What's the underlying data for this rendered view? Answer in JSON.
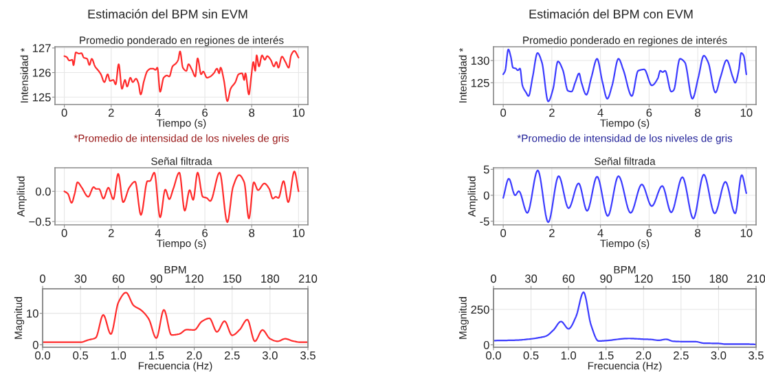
{
  "chart_data": [
    {
      "type": "line",
      "title": "Promedio ponderado en regiones de interés",
      "xlabel": "Tiempo (s)",
      "ylabel": "Intensidad *",
      "annotations": [
        "Estimación del BPM sin EVM",
        "*Promedio de intensidad de los niveles de gris"
      ],
      "xlim": [
        -0.4,
        10.4
      ],
      "xticks": [
        0,
        2,
        4,
        6,
        8,
        10
      ],
      "ylim": [
        124.7,
        127.05
      ],
      "yticks": [
        125,
        126,
        127
      ],
      "grid": true,
      "series": [
        {
          "color": "#ff2a2a",
          "x": [
            0,
            0.1,
            0.21,
            0.34,
            0.39,
            0.49,
            0.63,
            0.73,
            0.83,
            0.97,
            1.07,
            1.17,
            1.31,
            1.46,
            1.56,
            1.71,
            1.85,
            1.95,
            2.09,
            2.19,
            2.32,
            2.46,
            2.59,
            2.68,
            2.82,
            2.92,
            3.06,
            3.16,
            3.26,
            3.4,
            3.55,
            3.7,
            3.79,
            3.89,
            3.97,
            4.09,
            4.24,
            4.38,
            4.48,
            4.62,
            4.77,
            4.86,
            4.94,
            5.06,
            5.21,
            5.3,
            5.45,
            5.59,
            5.69,
            5.84,
            5.93,
            6.09,
            6.23,
            6.38,
            6.52,
            6.61,
            6.67,
            6.81,
            6.96,
            7.1,
            7.3,
            7.44,
            7.59,
            7.68,
            7.73,
            7.88,
            7.98,
            8.07,
            8.15,
            8.21,
            8.31,
            8.44,
            8.56,
            8.66,
            8.81,
            8.95,
            9.05,
            9.14,
            9.29,
            9.44,
            9.58,
            9.68,
            9.82,
            10
          ],
          "values": [
            126.67,
            126.63,
            126.49,
            126.52,
            126.3,
            126.82,
            126.77,
            126.79,
            126.61,
            126.56,
            126.31,
            126.56,
            126.25,
            126.07,
            125.93,
            125.61,
            125.93,
            125.66,
            125.7,
            125.52,
            126.34,
            125.34,
            125.7,
            125.43,
            125.79,
            125.61,
            125.75,
            125.57,
            125.11,
            125.66,
            126.07,
            126.16,
            126.16,
            126.11,
            126.2,
            125.22,
            125.79,
            125.88,
            125.84,
            126.25,
            126.38,
            126.52,
            126.86,
            126.2,
            126.07,
            126.34,
            126.11,
            125.84,
            126.58,
            125.93,
            126.04,
            125.79,
            125.84,
            125.97,
            126.16,
            125.97,
            126.2,
            125.7,
            124.84,
            125.34,
            125.61,
            125.93,
            125.97,
            125.7,
            125.97,
            125.11,
            125.84,
            126.43,
            126.07,
            126.7,
            126.25,
            126.7,
            126.52,
            126.67,
            126.52,
            126.25,
            126.43,
            126.2,
            126.65,
            126.43,
            126.2,
            126.7,
            126.88,
            126.61
          ]
        }
      ]
    },
    {
      "type": "line",
      "title": "Promedio ponderado en regiones de interés",
      "xlabel": "Tiempo (s)",
      "ylabel": "Intensidad *",
      "annotations": [
        "Estimación del BPM con EVM",
        "*Promedio de intensidad de los niveles de gris"
      ],
      "xlim": [
        -0.4,
        10.4
      ],
      "xticks": [
        0,
        2,
        4,
        6,
        8,
        10
      ],
      "ylim": [
        120.1,
        133.1
      ],
      "yticks": [
        125,
        130
      ],
      "grid": true,
      "series": [
        {
          "color": "#3a3aff",
          "x": [
            0,
            0.08,
            0.21,
            0.31,
            0.4,
            0.52,
            0.6,
            0.69,
            0.79,
            0.94,
            1.04,
            1.21,
            1.41,
            1.59,
            1.85,
            2.05,
            2.25,
            2.45,
            2.66,
            2.81,
            2.97,
            3.12,
            3.22,
            3.42,
            3.63,
            3.86,
            4.08,
            4.28,
            4.48,
            4.74,
            4.94,
            5.29,
            5.55,
            5.8,
            6.11,
            6.36,
            6.46,
            6.56,
            6.66,
            6.91,
            7.01,
            7.27,
            7.47,
            7.78,
            8.03,
            8.25,
            8.43,
            8.73,
            8.94,
            9.19,
            9.44,
            9.54,
            9.69,
            9.79,
            9.89,
            10
          ],
          "values": [
            126.9,
            127.7,
            132.5,
            130.9,
            128.4,
            128.2,
            127.8,
            128.2,
            124.4,
            122.8,
            122,
            126.3,
            131.7,
            129.6,
            120.8,
            123.6,
            129.8,
            127.9,
            123.2,
            123,
            125.2,
            127.1,
            125,
            122.3,
            126.3,
            130.4,
            125.2,
            121.4,
            124.4,
            130.4,
            127.9,
            122,
            127.7,
            128,
            124.4,
            126,
            127.7,
            127.4,
            127.7,
            123,
            123.3,
            130.4,
            129.6,
            121.4,
            126.3,
            131.1,
            129.6,
            122.8,
            126.3,
            130.1,
            126.3,
            125,
            127.9,
            131.7,
            131.1,
            126.9
          ]
        }
      ]
    },
    {
      "type": "line",
      "title": "Señal filtrada",
      "xlabel": "Tiempo (s)",
      "ylabel": "Amplitud",
      "xlim": [
        -0.4,
        10.4
      ],
      "xticks": [
        0,
        2,
        4,
        6,
        8,
        10
      ],
      "ylim": [
        -0.555,
        0.39
      ],
      "yticks": [
        {
          "value": 0,
          "label": "0.0"
        },
        {
          "value": -0.5,
          "label": "−0.5"
        }
      ],
      "grid": true,
      "series": [
        {
          "color": "#ff2a2a",
          "x": [
            0,
            0.15,
            0.31,
            0.44,
            0.56,
            0.73,
            1.02,
            1.25,
            1.36,
            1.48,
            1.67,
            1.88,
            2.09,
            2.3,
            2.51,
            2.77,
            3.02,
            3.27,
            3.55,
            3.65,
            3.84,
            4.09,
            4.31,
            4.48,
            4.65,
            4.91,
            5.14,
            5.35,
            5.5,
            5.69,
            5.91,
            6.08,
            6.23,
            6.63,
            6.96,
            7.2,
            7.46,
            7.68,
            7.88,
            8.09,
            8.27,
            8.54,
            8.75,
            8.9,
            9.03,
            9.14,
            9.36,
            9.56,
            9.82,
            10
          ],
          "values": [
            0,
            -0.04,
            -0.19,
            -0.04,
            0.15,
            0.07,
            -0.09,
            0.07,
            0.04,
            0.04,
            -0.12,
            0.06,
            -0.13,
            0.29,
            -0.18,
            0.06,
            0.16,
            -0.39,
            0.17,
            0.17,
            0.31,
            -0.43,
            0.03,
            -0.13,
            0.04,
            0.31,
            -0.32,
            0.02,
            -0.14,
            0.31,
            -0.09,
            -0.11,
            -0.16,
            0.31,
            -0.51,
            0.07,
            0.27,
            0.15,
            -0.45,
            0.15,
            0.02,
            0.13,
            0.04,
            -0.12,
            -0.09,
            -0.11,
            0.17,
            -0.18,
            0.33,
            0
          ]
        }
      ]
    },
    {
      "type": "line",
      "title": "Señal filtrada",
      "xlabel": "Tiempo (s)",
      "ylabel": "Amplitud",
      "xlim": [
        -0.4,
        10.4
      ],
      "xticks": [
        0,
        2,
        4,
        6,
        8,
        10
      ],
      "ylim": [
        -5.7,
        5.3
      ],
      "yticks": [
        -5,
        0,
        5
      ],
      "grid": true,
      "series": [
        {
          "color": "#3a3aff",
          "x": [
            0,
            0.23,
            0.49,
            0.64,
            0.99,
            1.42,
            1.85,
            2.28,
            2.69,
            3.1,
            3.45,
            3.86,
            4.3,
            4.74,
            5.24,
            5.7,
            6.11,
            6.54,
            6.91,
            7.37,
            7.82,
            8.25,
            8.7,
            9.14,
            9.54,
            9.81,
            10
          ],
          "values": [
            -0.5,
            3.2,
            0,
            0.8,
            -3.4,
            4.8,
            -5.2,
            3.7,
            -2.5,
            2.3,
            -3,
            3.6,
            -4,
            3.7,
            -3.4,
            2.1,
            -2.1,
            1.8,
            -3.3,
            3.5,
            -4.5,
            4,
            -3.5,
            2.6,
            -3.5,
            3.9,
            0.4
          ]
        }
      ]
    },
    {
      "type": "line",
      "xlabel": "Frecuencia (Hz)",
      "ylabel": "Magnitud",
      "x2label": "BPM",
      "xlim": [
        0,
        3.5
      ],
      "xticks": [
        {
          "value": 0,
          "label": "0.0"
        },
        0.5,
        {
          "value": 1,
          "label": "1.0"
        },
        1.5,
        {
          "value": 2,
          "label": "2.0"
        },
        2.5,
        {
          "value": 3,
          "label": "3.0"
        },
        3.5
      ],
      "x2lim": [
        0,
        210
      ],
      "x2ticks": [
        0,
        30,
        60,
        90,
        120,
        150,
        180,
        210
      ],
      "ylim": [
        -0.8,
        17.8
      ],
      "yticks": [
        0,
        10
      ],
      "grid": true,
      "series": [
        {
          "color": "#ff2a2a",
          "x": [
            0,
            0.5,
            0.6,
            0.7,
            0.8,
            0.9,
            1.0,
            1.1,
            1.2,
            1.3,
            1.4,
            1.5,
            1.6,
            1.7,
            1.8,
            1.9,
            2.0,
            2.1,
            2.2,
            2.3,
            2.4,
            2.5,
            2.6,
            2.7,
            2.8,
            2.9,
            3.0,
            3.1,
            3.2,
            3.3,
            3.4,
            3.5
          ],
          "values": [
            0.8,
            0.8,
            1.5,
            2.2,
            9.5,
            3.4,
            13.5,
            16.6,
            12.5,
            11,
            8.2,
            2.1,
            11.1,
            3.1,
            3.4,
            4.8,
            4.7,
            7.4,
            8.4,
            4.1,
            7.5,
            3,
            4.8,
            8,
            1.1,
            4.7,
            1.9,
            1.1,
            1.9,
            1.2,
            0.8,
            0.8
          ]
        }
      ]
    },
    {
      "type": "line",
      "xlabel": "Frecuencia (Hz)",
      "ylabel": "Magnitud",
      "x2label": "BPM",
      "xlim": [
        0,
        3.5
      ],
      "xticks": [
        {
          "value": 0,
          "label": "0.0"
        },
        0.5,
        {
          "value": 1,
          "label": "1.0"
        },
        1.5,
        {
          "value": 2,
          "label": "2.0"
        },
        2.5,
        {
          "value": 3,
          "label": "3.0"
        },
        3.5
      ],
      "x2lim": [
        0,
        210
      ],
      "x2ticks": [
        0,
        30,
        60,
        90,
        120,
        150,
        180,
        210
      ],
      "ylim": [
        -17,
        396
      ],
      "yticks": [
        0,
        250
      ],
      "grid": true,
      "series": [
        {
          "color": "#3a3aff",
          "x": [
            0,
            0.3,
            0.5,
            0.6,
            0.7,
            0.8,
            0.9,
            1.0,
            1.1,
            1.2,
            1.3,
            1.4,
            1.5,
            1.8,
            2.0,
            2.1,
            2.2,
            2.3,
            2.4,
            2.6,
            2.7,
            2.8,
            3.0,
            3.1,
            3.4,
            3.5
          ],
          "values": [
            30,
            33,
            42,
            50,
            62,
            105,
            165,
            113,
            200,
            372,
            140,
            27,
            30,
            45,
            40,
            38,
            32,
            39,
            25,
            22,
            22,
            12,
            10,
            5,
            5,
            3
          ]
        }
      ]
    }
  ]
}
